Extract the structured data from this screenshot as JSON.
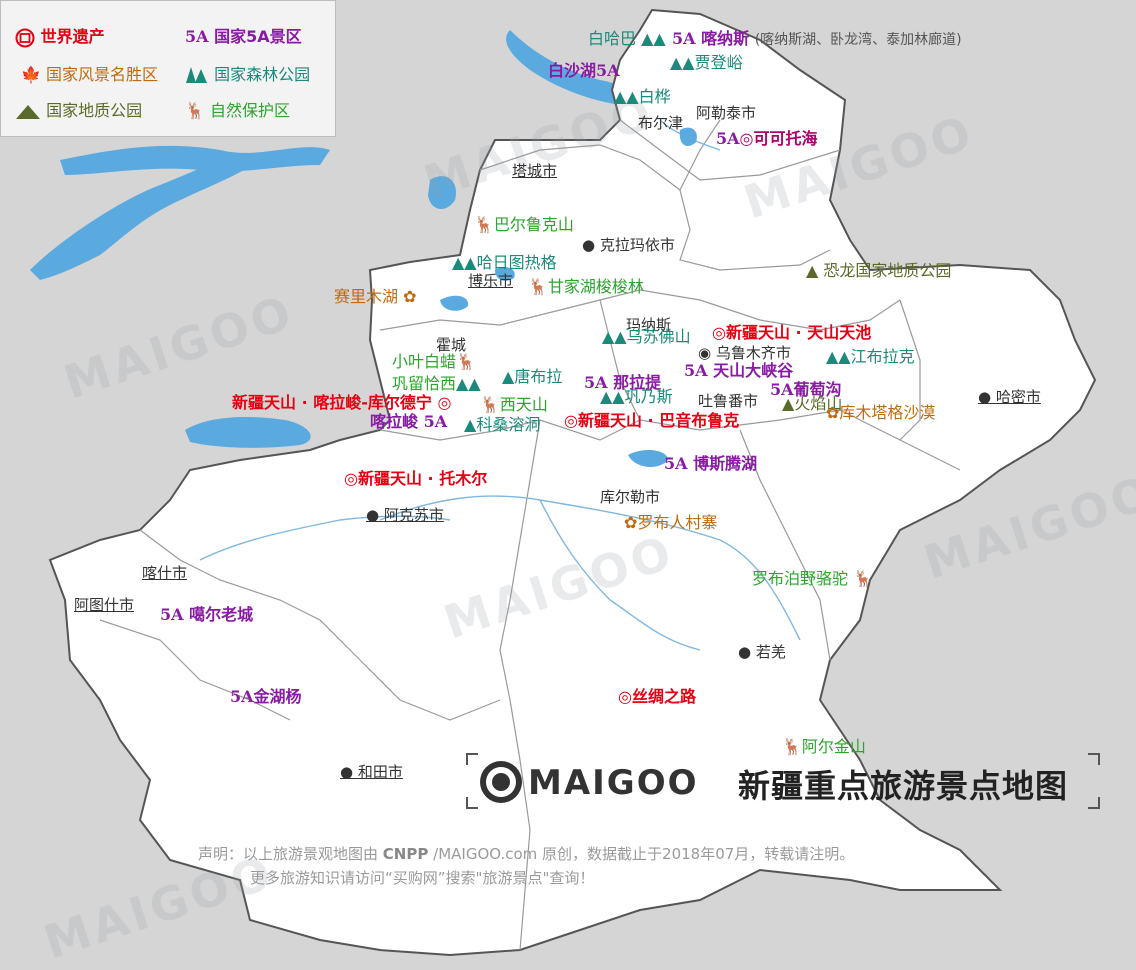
{
  "title": "新疆重点旅游景点地图",
  "brand": "MAIGOO",
  "legend": [
    {
      "label": "世界遗产",
      "icon": "world-heritage-icon",
      "color": "#e60012"
    },
    {
      "label": "国家5A景区",
      "icon": "5a-scenic-icon",
      "color": "#8a1aa6",
      "badge": "5A"
    },
    {
      "label": "国家风景名胜区",
      "icon": "maple-leaf-icon",
      "color": "#c06a10"
    },
    {
      "label": "国家森林公园",
      "icon": "forest-icon",
      "color": "#1b8a7b"
    },
    {
      "label": "国家地质公园",
      "icon": "mountain-icon",
      "color": "#5a6a2a"
    },
    {
      "label": "自然保护区",
      "icon": "deer-icon",
      "color": "#2aa62a"
    }
  ],
  "cities": {
    "tacheng": "塔城市",
    "kelamayi": "克拉玛依市",
    "bole": "博乐市",
    "huocheng": "霍城",
    "manas": "玛纳斯",
    "urumqi": "乌鲁木齐市",
    "turpan": "吐鲁番市",
    "hami": "哈密市",
    "altay": "阿勒泰市",
    "burqin": "布尔津",
    "korla": "库尔勒市",
    "aksu": "阿克苏市",
    "kashgar": "喀什市",
    "atush": "阿图什市",
    "ruoqiang": "若羌",
    "hotan": "和田市"
  },
  "spots": {
    "baihaba": "白哈巴",
    "kanas": "喀纳斯",
    "kanas_note": "(喀纳斯湖、卧龙湾、泰加林廊道)",
    "baishahu": "白沙湖",
    "jiadengyu": "贾登峪",
    "baihua": "白桦",
    "keketuohai": "可可托海",
    "barluk": "巴尔鲁克山",
    "harituore": "哈日图热格",
    "ganjiahu": "甘家湖梭梭林",
    "dinosaur": "恐龙国家地质公园",
    "sailimu": "赛里木湖",
    "wusufoshan": "乌苏佛山",
    "tianchi": "新疆天山 · 天山天池",
    "jiangbulake": "江布拉克",
    "xiaoyebaila": "小叶白蜡",
    "gongliuqiaxi": "巩留恰西",
    "tangbula": "唐布拉",
    "nalati": "那拉提",
    "gongnaisi": "巩乃斯",
    "tianshandaxiagu": "天山大峡谷",
    "putaogou": "葡萄沟",
    "huoyanshan": "火焰山",
    "kumutage": "库木塔格沙漠",
    "kalajun": "新疆天山 · 喀拉峻-库尔德宁",
    "xitianshan": "西天山",
    "kalajun5a": "喀拉峻",
    "kesangrongdong": "科桑溶洞",
    "bayinbuluke": "新疆天山 · 巴音布鲁克",
    "bosten": "博斯腾湖",
    "tomur": "新疆天山 · 托木尔",
    "loulan": "罗布人村寨",
    "camel": "罗布泊野骆驼",
    "kashgar_old": "噶尔老城",
    "jinhuyang": "金湖杨",
    "silkroad": "丝绸之路",
    "arjin": "阿尔金山"
  },
  "badge_5a": "5A",
  "disclaimer": {
    "line1a": "声明：以上旅游景观地图由",
    "line1b": "CNPP",
    "line1c": "/MAIGOO.com 原创，数据截止于2018年07月，转载请注明。",
    "line2": "更多旅游知识请访问“买购网”搜索\"旅游景点\"查询！"
  },
  "watermark": "MAIGOO",
  "colors": {
    "land": "#ffffff",
    "outside": "#d5d5d5",
    "water": "#5aa9df",
    "border": "#666666",
    "world_heritage": "#e60012",
    "a5": "#8a1aa6",
    "forest": "#1b8a7b",
    "scenic": "#c06a10",
    "nature": "#2aa62a",
    "geo": "#5a6a2a"
  }
}
